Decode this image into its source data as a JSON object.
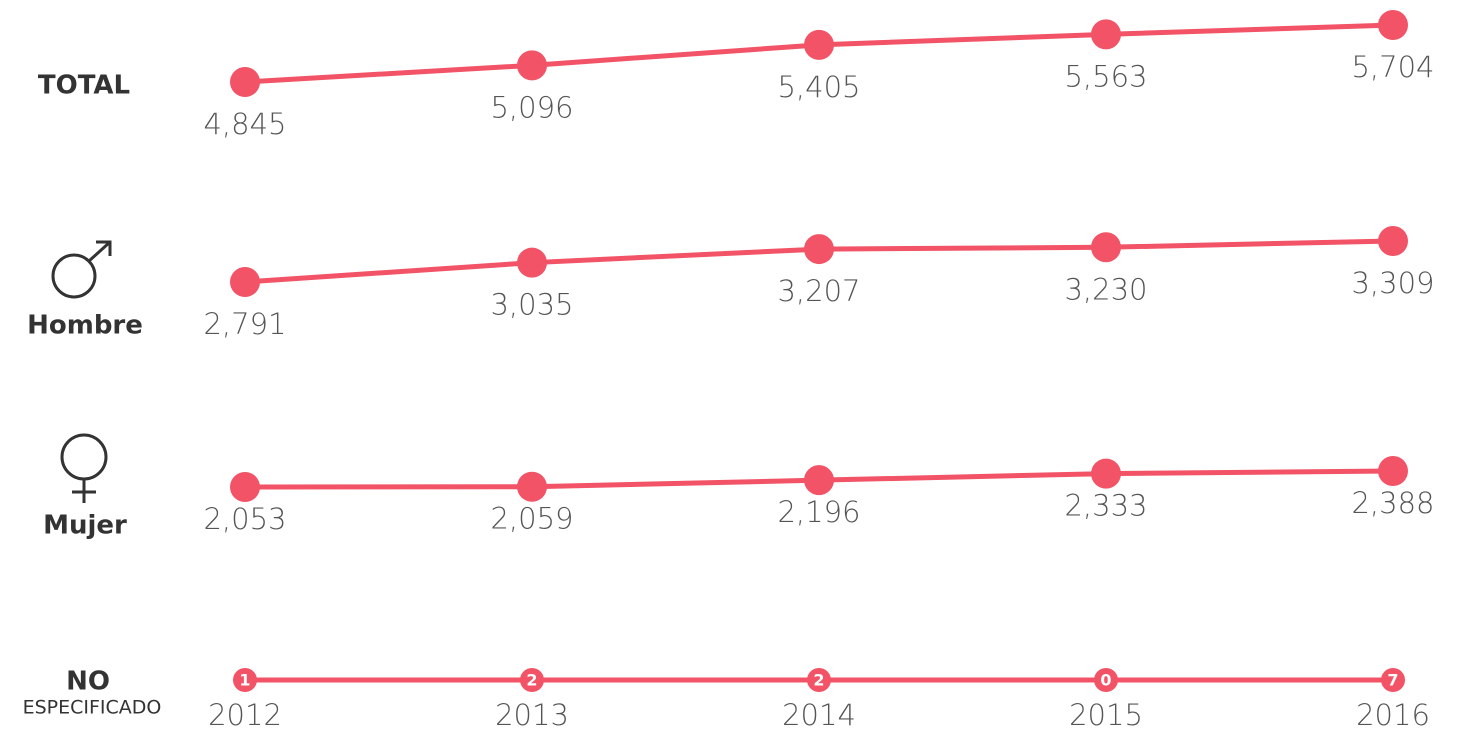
{
  "chart_data": [
    {
      "type": "line",
      "label": "TOTAL",
      "color": "#f25366",
      "values": [
        4845,
        5096,
        5405,
        5563,
        5704
      ],
      "value_labels": [
        "4,845",
        "5,096",
        "5,405",
        "5,563",
        "5,704"
      ]
    },
    {
      "type": "line",
      "label": "Hombre",
      "color": "#f25366",
      "values": [
        2791,
        3035,
        3207,
        3230,
        3309
      ],
      "value_labels": [
        "2,791",
        "3,035",
        "3,207",
        "3,230",
        "3,309"
      ]
    },
    {
      "type": "line",
      "label": "Mujer",
      "color": "#f25366",
      "values": [
        2053,
        2059,
        2196,
        2333,
        2388
      ],
      "value_labels": [
        "2,053",
        "2,059",
        "2,196",
        "2,333",
        "2,388"
      ]
    },
    {
      "type": "line",
      "label": "NO",
      "sublabel": "ESPECIFICADO",
      "color": "#f25366",
      "categories": [
        "2012",
        "2013",
        "2014",
        "2015",
        "2016"
      ],
      "values": [
        1,
        2,
        2,
        0,
        7
      ]
    }
  ]
}
